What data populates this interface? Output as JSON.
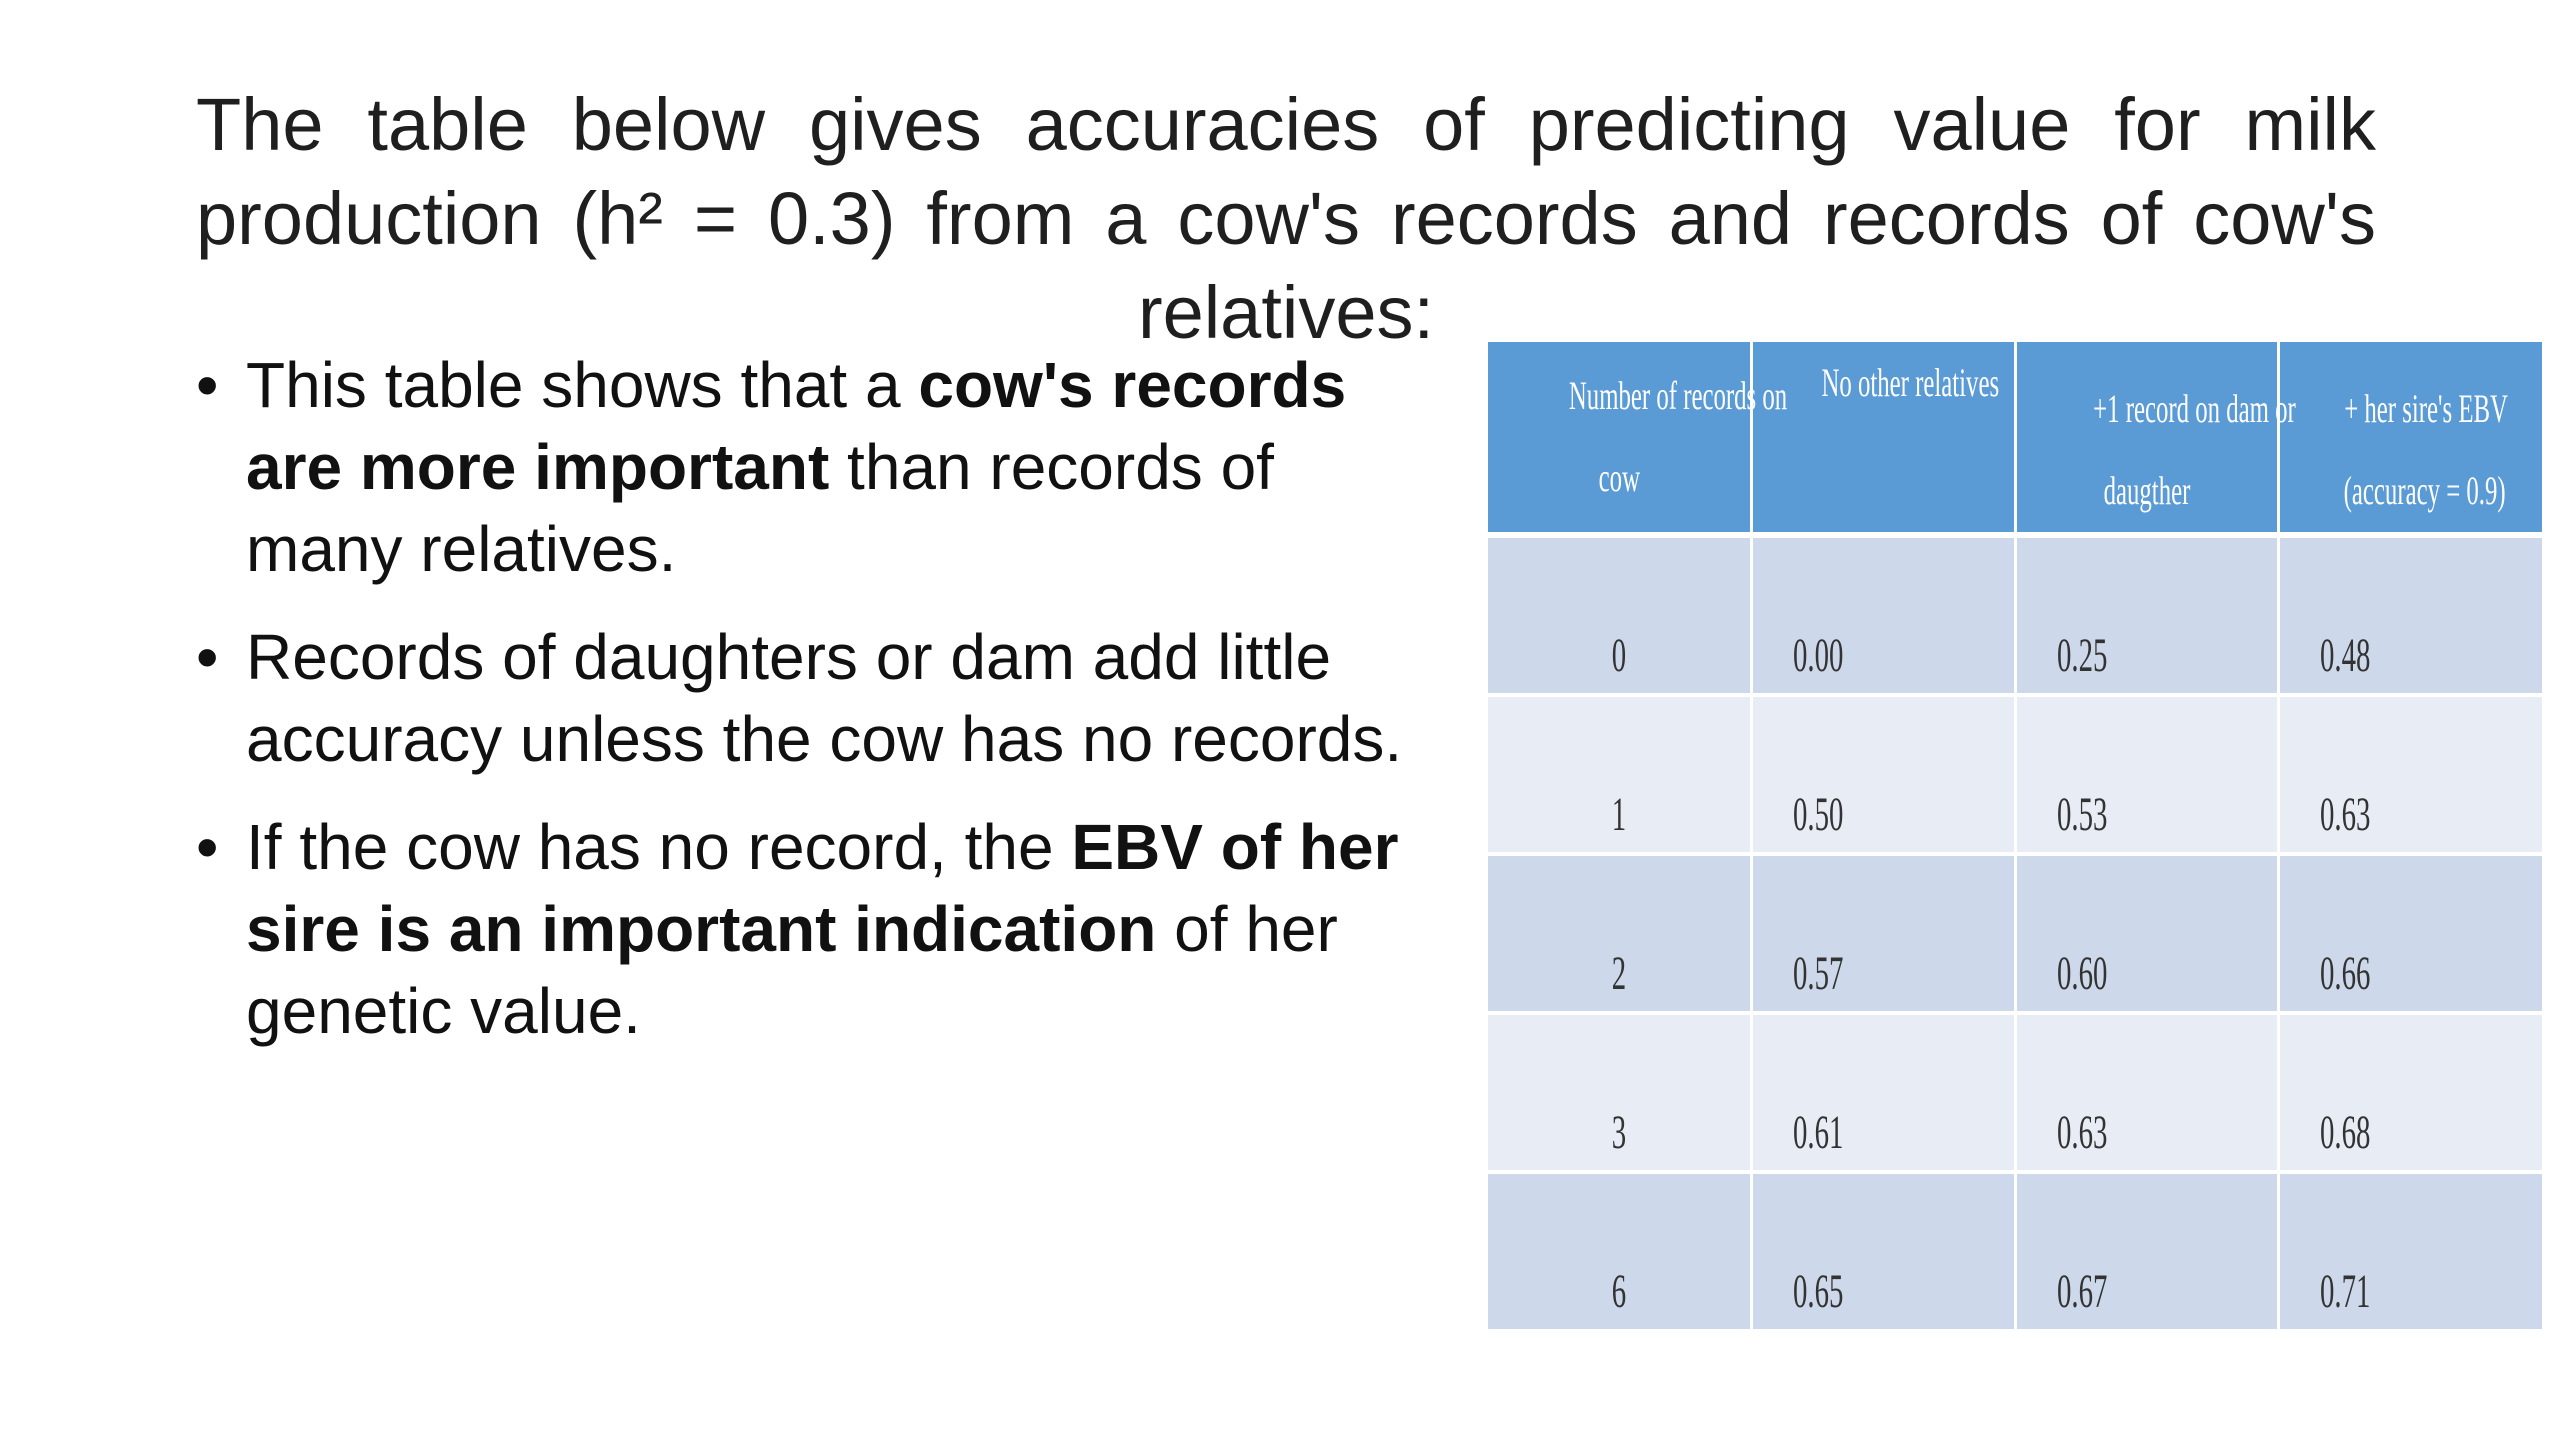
{
  "title": {
    "text": "The table below gives accuracies of predicting value for milk production (h² = 0.3) from a cow's records and records of cow's relatives:"
  },
  "bullets": [
    {
      "parts": [
        {
          "text": "This table shows that a ",
          "bold": false
        },
        {
          "text": "cow's records are more important",
          "bold": true
        },
        {
          "text": " than records of many relatives.",
          "bold": false
        }
      ]
    },
    {
      "parts": [
        {
          "text": " Records of daughters or dam add little accuracy unless the cow has no records.",
          "bold": false
        }
      ]
    },
    {
      "parts": [
        {
          "text": "If the cow has no record, the ",
          "bold": false
        },
        {
          "text": "EBV of her sire is an important indication",
          "bold": true
        },
        {
          "text": " of her genetic value.",
          "bold": false
        }
      ]
    }
  ],
  "bullet_symbol": "•",
  "table": {
    "headers": [
      [
        "Number of records on",
        "cow"
      ],
      [
        "No other relatives"
      ],
      [
        "+1 record on dam or",
        "daugther"
      ],
      [
        "+ her sire's EBV",
        "(accuracy = 0.9)"
      ]
    ],
    "rows": [
      [
        "0",
        "0.00",
        "0.25",
        "0.48"
      ],
      [
        "1",
        "0.50",
        "0.53",
        "0.63"
      ],
      [
        "2",
        "0.57",
        "0.60",
        "0.66"
      ],
      [
        "3",
        "0.61",
        "0.63",
        "0.68"
      ],
      [
        "6",
        "0.65",
        "0.67",
        "0.71"
      ]
    ],
    "header_color": "#5b9bd5",
    "row_color_odd": "#cdd9ea",
    "row_color_even": "#e8edf5"
  }
}
